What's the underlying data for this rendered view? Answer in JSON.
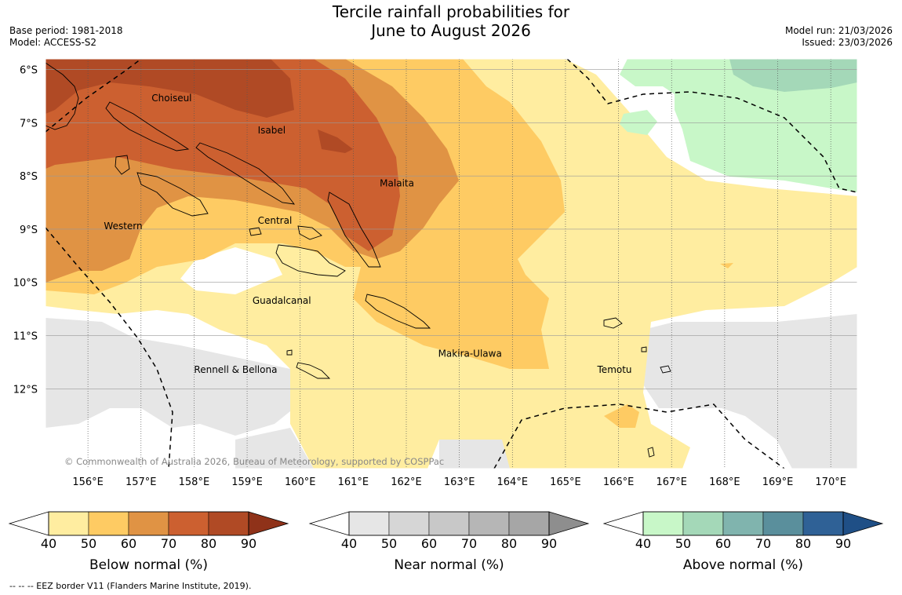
{
  "title_line1": "Tercile rainfall probabilities for",
  "title_line2": "June to August 2026",
  "base_period": "Base period: 1981-2018",
  "model": "Model: ACCESS-S2",
  "model_run": "Model run: 21/03/2026",
  "issued": "Issued: 23/03/2026",
  "copyright": "© Commonwealth of Australia 2026, Bureau of Meteorology, supported by COSPPac",
  "footer": "--  --  -- EEZ border V11 (Flanders Marine Institute, 2019).",
  "map": {
    "lon_range": [
      155.2,
      170.5
    ],
    "lat_range": [
      -13.5,
      -5.8
    ],
    "lon_ticks": [
      {
        "value": 156,
        "label": "156°E"
      },
      {
        "value": 157,
        "label": "157°E"
      },
      {
        "value": 158,
        "label": "158°E"
      },
      {
        "value": 159,
        "label": "159°E"
      },
      {
        "value": 160,
        "label": "160°E"
      },
      {
        "value": 161,
        "label": "161°E"
      },
      {
        "value": 162,
        "label": "162°E"
      },
      {
        "value": 163,
        "label": "163°E"
      },
      {
        "value": 164,
        "label": "164°E"
      },
      {
        "value": 165,
        "label": "165°E"
      },
      {
        "value": 166,
        "label": "166°E"
      },
      {
        "value": 167,
        "label": "167°E"
      },
      {
        "value": 168,
        "label": "168°E"
      },
      {
        "value": 169,
        "label": "169°E"
      },
      {
        "value": 170,
        "label": "170°E"
      }
    ],
    "lat_ticks": [
      {
        "value": -6,
        "label": "6°S"
      },
      {
        "value": -7,
        "label": "7°S"
      },
      {
        "value": -8,
        "label": "8°S"
      },
      {
        "value": -9,
        "label": "9°S"
      },
      {
        "value": -10,
        "label": "10°S"
      },
      {
        "value": -11,
        "label": "11°S"
      },
      {
        "value": -12,
        "label": "12°S"
      }
    ],
    "region_labels": [
      {
        "name": "Choiseul",
        "lon": 157.2,
        "lat": -6.6
      },
      {
        "name": "Isabel",
        "lon": 159.2,
        "lat": -7.2
      },
      {
        "name": "Malaita",
        "lon": 161.5,
        "lat": -8.2
      },
      {
        "name": "Western",
        "lon": 156.3,
        "lat": -9.0
      },
      {
        "name": "Central",
        "lon": 159.2,
        "lat": -8.9
      },
      {
        "name": "Guadalcanal",
        "lon": 159.1,
        "lat": -10.4
      },
      {
        "name": "Makira-Ulawa",
        "lon": 162.6,
        "lat": -11.4
      },
      {
        "name": "Temotu",
        "lon": 165.6,
        "lat": -11.7
      },
      {
        "name": "Rennell & Bellona",
        "lon": 158.0,
        "lat": -11.7
      }
    ]
  },
  "colorbars": [
    {
      "title": "Below normal (%)",
      "labels": [
        "40",
        "50",
        "60",
        "70",
        "80",
        "90"
      ],
      "colors": [
        "#ffeda0",
        "#fecb63",
        "#e09344",
        "#cc6030",
        "#b04a25"
      ],
      "over": "#8f3219"
    },
    {
      "title": "Near normal (%)",
      "labels": [
        "40",
        "50",
        "60",
        "70",
        "80",
        "90"
      ],
      "colors": [
        "#e6e6e6",
        "#d6d6d6",
        "#c8c8c8",
        "#b6b6b6",
        "#a6a6a6"
      ],
      "over": "#8e8e8e"
    },
    {
      "title": "Above normal (%)",
      "labels": [
        "40",
        "50",
        "60",
        "70",
        "80",
        "90"
      ],
      "colors": [
        "#c8f7c8",
        "#a4d8b8",
        "#80b4ae",
        "#5a8f9c",
        "#2f6196"
      ],
      "over": "#1f4f86"
    }
  ]
}
